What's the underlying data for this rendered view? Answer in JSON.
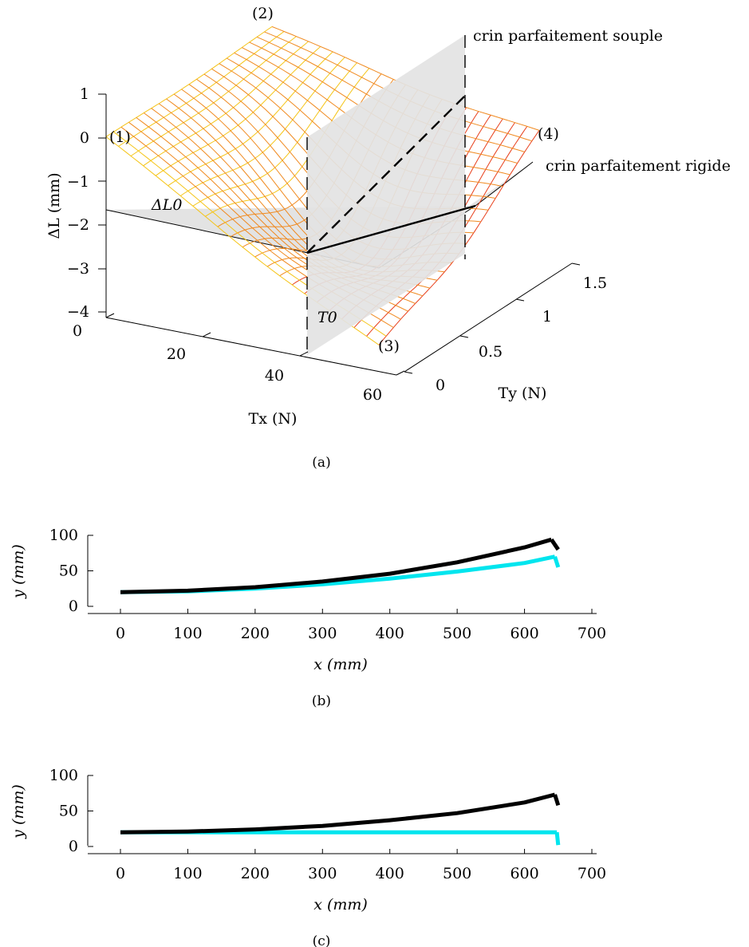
{
  "chart_data": [
    {
      "type": "surface",
      "caption": "(a)",
      "zlabel": "ΔL (mm)",
      "xlabel": "Tx (N)",
      "ylabel": "Ty (N)",
      "zlim": [
        -4,
        1
      ],
      "xlim": [
        0,
        60
      ],
      "ylim": [
        0,
        1.5
      ],
      "z_ticks": [
        "1",
        "0",
        "−1",
        "−2",
        "−3",
        "−4"
      ],
      "x_ticks": [
        "0",
        "20",
        "40",
        "60"
      ],
      "y_ticks": [
        "0",
        "0.5",
        "1",
        "1.5"
      ],
      "annotations": {
        "corner1": "(1)",
        "corner2": "(2)",
        "corner3": "(3)",
        "corner4": "(4)",
        "soft_plane": "crin parfaitement souple",
        "rigid_plane": "crin parfaitement rigide",
        "delta_l0": "ΔL0",
        "t0": "T0"
      },
      "colors": {
        "surface_light": "#f5c518",
        "surface_mid": "#f08a20",
        "surface_dark": "#e8401c",
        "planes": "#e3e3e3"
      }
    },
    {
      "type": "line",
      "caption": "(b)",
      "xlabel": "x (mm)",
      "ylabel": "y (mm)",
      "xlim": [
        -40,
        700
      ],
      "ylim": [
        0,
        100
      ],
      "x_ticks": [
        0,
        100,
        200,
        300,
        400,
        500,
        600,
        700
      ],
      "y_ticks": [
        0,
        50,
        100
      ],
      "series": [
        {
          "color": "#000000",
          "x": [
            0,
            100,
            200,
            300,
            400,
            500,
            600,
            640,
            650
          ],
          "y": [
            20,
            22,
            27,
            35,
            46,
            62,
            83,
            94,
            80
          ]
        },
        {
          "color": "#00e5ee",
          "x": [
            0,
            100,
            200,
            300,
            400,
            500,
            600,
            645,
            650
          ],
          "y": [
            20,
            21,
            25,
            31,
            39,
            49,
            61,
            70,
            55
          ]
        }
      ]
    },
    {
      "type": "line",
      "caption": "(c)",
      "xlabel": "x (mm)",
      "ylabel": "y (mm)",
      "xlim": [
        -40,
        700
      ],
      "ylim": [
        0,
        100
      ],
      "x_ticks": [
        0,
        100,
        200,
        300,
        400,
        500,
        600,
        700
      ],
      "y_ticks": [
        0,
        50,
        100
      ],
      "series": [
        {
          "color": "#000000",
          "x": [
            0,
            100,
            200,
            300,
            400,
            500,
            600,
            645,
            650
          ],
          "y": [
            20,
            21,
            24,
            29,
            37,
            47,
            62,
            73,
            58
          ]
        },
        {
          "color": "#00e5ee",
          "x": [
            0,
            100,
            200,
            300,
            400,
            500,
            600,
            648,
            650
          ],
          "y": [
            20,
            20,
            20,
            20,
            20,
            20,
            20,
            20,
            2
          ]
        }
      ]
    }
  ]
}
